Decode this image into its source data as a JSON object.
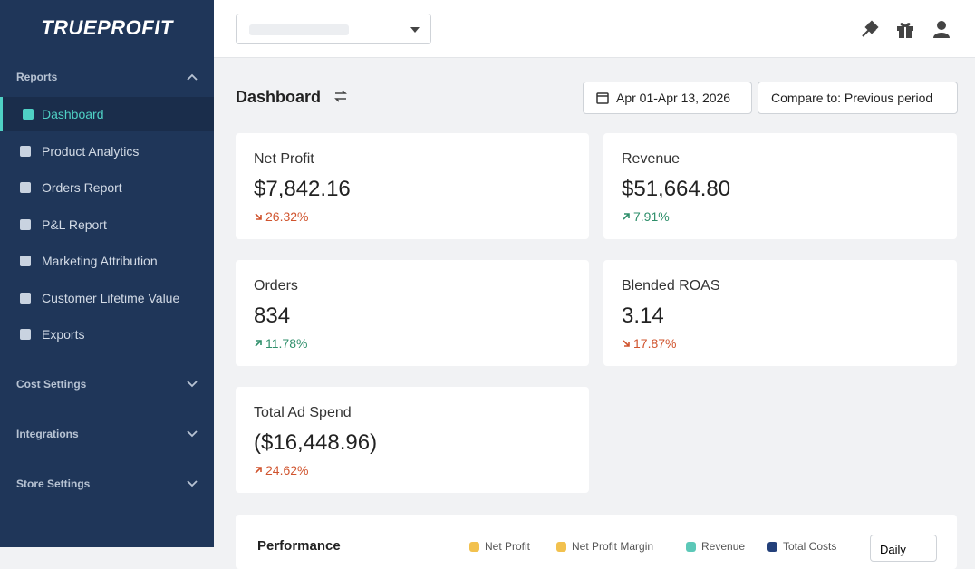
{
  "sidebar": {
    "logo": "TRUEPROFIT",
    "sections": [
      {
        "title": "Reports",
        "expanded": true,
        "items": [
          "Dashboard",
          "Product Analytics",
          "Orders Report",
          "P&L Report",
          "Marketing Attribution",
          "Customer Lifetime Value",
          "Exports"
        ],
        "active": 0
      },
      {
        "title": "Cost Settings",
        "expanded": false
      },
      {
        "title": "Integrations",
        "expanded": false
      },
      {
        "title": "Store Settings",
        "expanded": false
      }
    ]
  },
  "header": {
    "title": "Dashboard",
    "date_range": "Apr 01-Apr 13, 2026",
    "compare": "Compare to: Previous period"
  },
  "cards": [
    {
      "label": "Net Profit",
      "value": "$7,842.16",
      "change": "26.32%",
      "trend": "down",
      "tone": "negative"
    },
    {
      "label": "Revenue",
      "value": "$51,664.80",
      "change": "7.91%",
      "trend": "up",
      "tone": "positive"
    },
    {
      "label": "Orders",
      "value": "834",
      "change": "11.78%",
      "trend": "up",
      "tone": "positive"
    },
    {
      "label": "Blended ROAS",
      "value": "3.14",
      "change": "17.87%",
      "trend": "down",
      "tone": "negative"
    },
    {
      "label": "Total Ad Spend",
      "value": "($16,448.96)",
      "change": "24.62%",
      "trend": "up",
      "tone": "negative"
    }
  ],
  "performance": {
    "title": "Performance",
    "legend": [
      {
        "name": "Net Profit",
        "color": "#f2c14e"
      },
      {
        "name": "Net Profit Margin",
        "color": "#f2c14e"
      },
      {
        "name": "Revenue",
        "color": "#5cc8b8"
      },
      {
        "name": "Total Costs",
        "color": "#23407a"
      }
    ],
    "granularity": "Daily"
  }
}
